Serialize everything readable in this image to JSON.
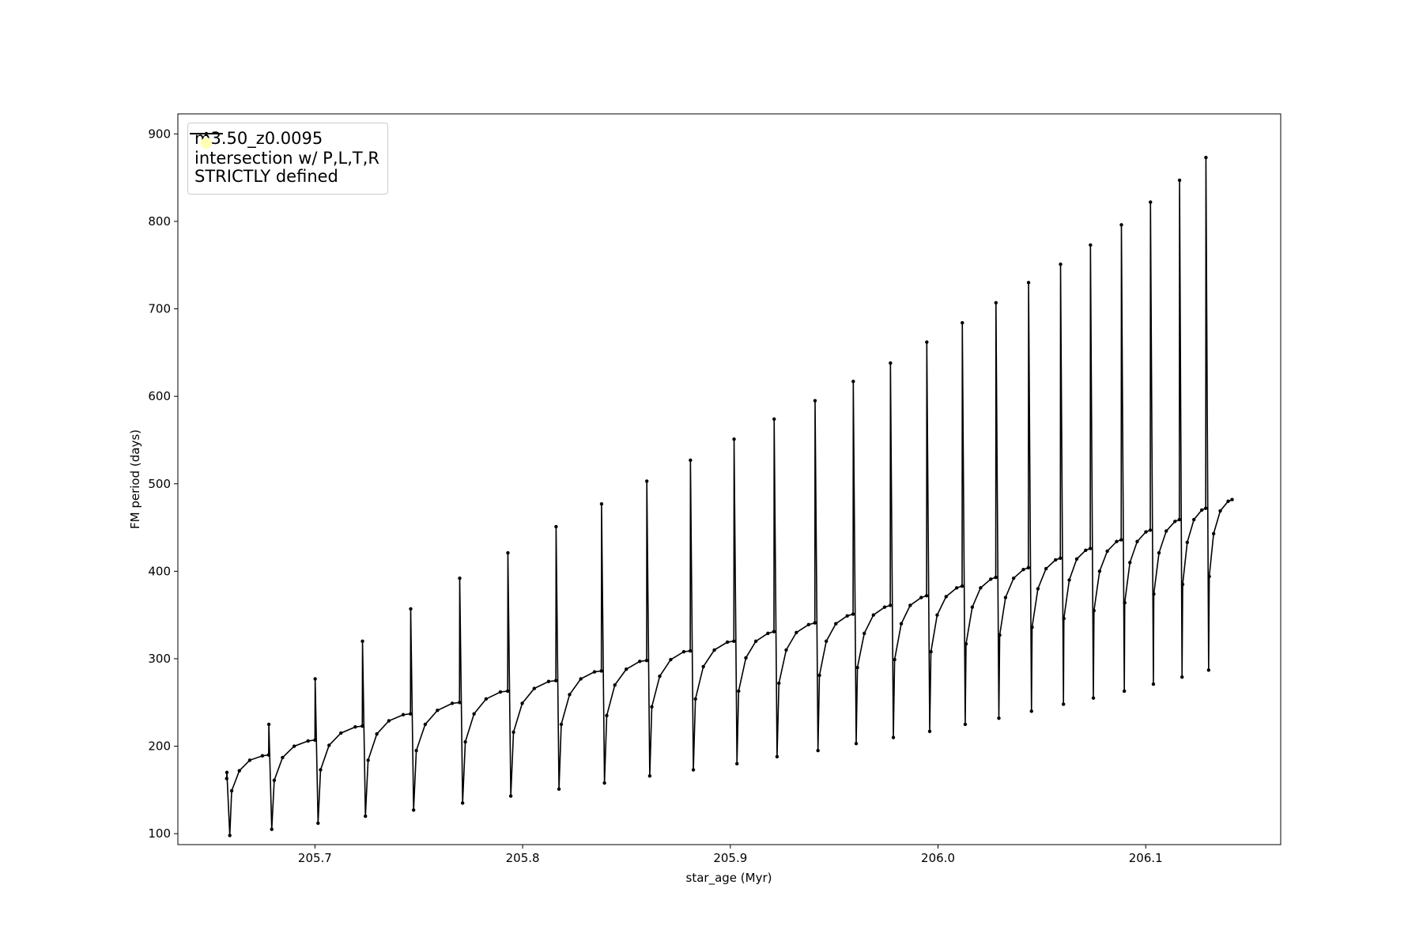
{
  "chart_data": {
    "type": "line",
    "xlabel": "star_age (Myr)",
    "ylabel": "FM period (days)",
    "xlim": [
      205.634,
      206.165
    ],
    "ylim": [
      87.5,
      922.9
    ],
    "xticks": [
      205.7,
      205.8,
      205.9,
      {
        "value": 206,
        "label": "206.0"
      },
      206.1
    ],
    "yticks": [
      100,
      200,
      300,
      400,
      500,
      600,
      700,
      800,
      900
    ],
    "legend": "upper left",
    "x": [
      205.6575,
      205.6576,
      205.659,
      205.6599,
      205.6636,
      205.6686,
      205.6747,
      205.6777,
      205.6778,
      205.6792,
      205.6804,
      205.6844,
      205.69,
      205.6967,
      205.7,
      205.7001,
      205.7015,
      205.7027,
      205.7068,
      205.7125,
      205.7194,
      205.7228,
      205.7229,
      205.7243,
      205.7256,
      205.7298,
      205.7356,
      205.7425,
      205.746,
      205.7461,
      205.7475,
      205.7488,
      205.7531,
      205.759,
      205.7661,
      205.7696,
      205.7697,
      205.7711,
      205.7724,
      205.7766,
      205.7824,
      205.7893,
      205.7928,
      205.7929,
      205.7943,
      205.7956,
      205.7998,
      205.8056,
      205.8125,
      205.816,
      205.8161,
      205.8175,
      205.8186,
      205.8226,
      205.828,
      205.8346,
      205.8379,
      205.838,
      205.8394,
      205.8405,
      205.8444,
      205.8499,
      205.8564,
      205.8597,
      205.8598,
      205.8612,
      205.8622,
      205.866,
      205.8713,
      205.8776,
      205.8807,
      205.8808,
      205.8822,
      205.8832,
      205.887,
      205.8923,
      205.8986,
      205.9017,
      205.9018,
      205.9032,
      205.904,
      205.9075,
      205.9123,
      205.9181,
      205.921,
      205.9211,
      205.9225,
      205.9234,
      205.9269,
      205.9318,
      205.9377,
      205.9407,
      205.9408,
      205.9422,
      205.9429,
      205.9462,
      205.9508,
      205.9563,
      205.9591,
      205.9592,
      205.9606,
      205.9612,
      205.9645,
      205.9689,
      205.9743,
      205.977,
      205.9771,
      205.9785,
      205.9791,
      205.9823,
      205.9866,
      205.9919,
      205.9945,
      205.9946,
      205.996,
      205.9966,
      205.9996,
      206.0039,
      206.009,
      206.0116,
      206.0117,
      206.0131,
      206.0135,
      206.0165,
      206.0205,
      206.0254,
      206.0278,
      206.0279,
      206.0293,
      206.0297,
      206.0325,
      206.0364,
      206.0411,
      206.0435,
      206.0436,
      206.045,
      206.0453,
      206.0481,
      206.052,
      206.0566,
      206.0589,
      206.059,
      206.0604,
      206.0606,
      206.0632,
      206.0668,
      206.0711,
      206.0733,
      206.0734,
      206.0748,
      206.0751,
      206.0778,
      206.0815,
      206.086,
      206.0882,
      206.0883,
      206.0897,
      206.0899,
      206.0924,
      206.0959,
      206.1001,
      206.1022,
      206.1023,
      206.1037,
      206.1039,
      206.1064,
      206.1099,
      206.1141,
      206.1162,
      206.1163,
      206.1175,
      206.1178,
      206.12,
      206.1232,
      206.127,
      206.1289,
      206.129,
      206.1303,
      206.1306,
      206.1327,
      206.1359,
      206.1397,
      206.1416
    ],
    "series": [
      {
        "name": "m3.50_z0.0095",
        "color": "#000000",
        "values": [
          163,
          170,
          98,
          149,
          172,
          184,
          189,
          190,
          225,
          105,
          161,
          187,
          200,
          206,
          207,
          277,
          112,
          173,
          201,
          215,
          222,
          223,
          320,
          120,
          184,
          214,
          229,
          236,
          237,
          357,
          127,
          195,
          225,
          241,
          249,
          250,
          392,
          135,
          205,
          237,
          254,
          262,
          263,
          421,
          143,
          216,
          249,
          266,
          274,
          275,
          451,
          151,
          225,
          259,
          277,
          285,
          286,
          477,
          158,
          235,
          270,
          288,
          297,
          298,
          503,
          166,
          245,
          280,
          299,
          308,
          309,
          527,
          173,
          254,
          291,
          310,
          319,
          320,
          551,
          180,
          263,
          301,
          320,
          329,
          331,
          574,
          188,
          272,
          310,
          330,
          339,
          341,
          595,
          195,
          281,
          320,
          340,
          349,
          351,
          617,
          203,
          290,
          329,
          350,
          359,
          361,
          638,
          210,
          299,
          340,
          361,
          370,
          372,
          662,
          217,
          308,
          350,
          371,
          381,
          383,
          684,
          225,
          317,
          359,
          381,
          391,
          393,
          707,
          232,
          327,
          370,
          392,
          402,
          404,
          730,
          240,
          336,
          380,
          403,
          413,
          415,
          751,
          248,
          346,
          390,
          414,
          424,
          426,
          773,
          255,
          355,
          400,
          423,
          434,
          436,
          796,
          263,
          364,
          410,
          434,
          445,
          447,
          822,
          271,
          374,
          421,
          446,
          457,
          459,
          847,
          279,
          385,
          433,
          459,
          470,
          472,
          873,
          287,
          394,
          443,
          469,
          480,
          482
        ]
      },
      {
        "name": "intersection w/ P,L,T,R\nSTRICTLY defined",
        "color": "#ffffb3",
        "type": "scatter",
        "values": []
      }
    ]
  }
}
